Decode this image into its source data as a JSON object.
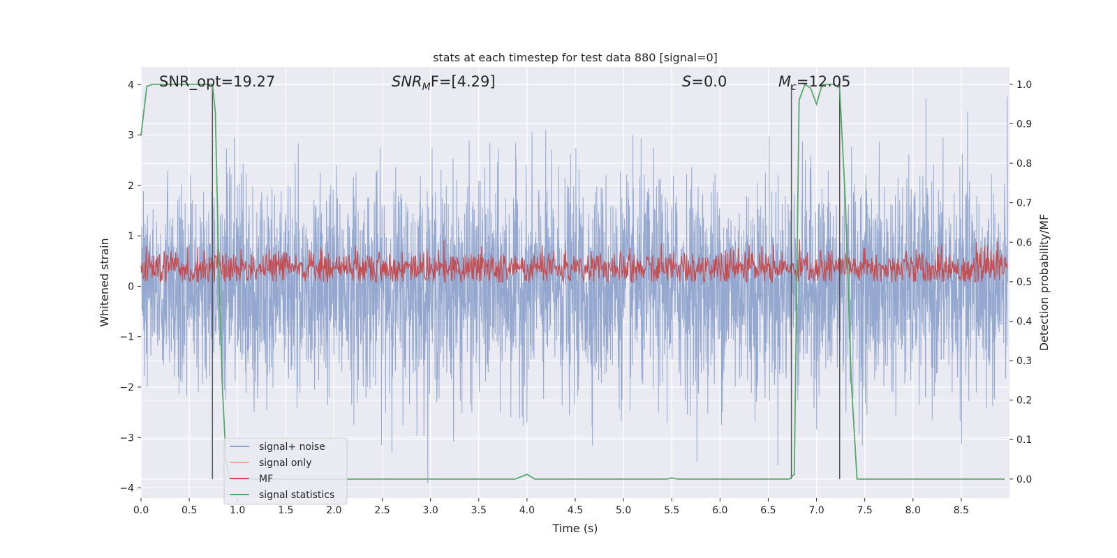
{
  "chart_data": {
    "type": "line",
    "title": "stats at each timestep for test data 880 [signal=0]",
    "xlabel": "Time (s)",
    "ylabel": "Whitened strain",
    "ylabel_right": "Detection probability/MF",
    "xlim": [
      0.0,
      9.0
    ],
    "ylim": [
      -4.2,
      4.35
    ],
    "ylim_right": [
      -0.048,
      1.044
    ],
    "x_ticks": [
      0.0,
      0.5,
      1.0,
      1.5,
      2.0,
      2.5,
      3.0,
      3.5,
      4.0,
      4.5,
      5.0,
      5.5,
      6.0,
      6.5,
      7.0,
      7.5,
      8.0,
      8.5
    ],
    "x_tick_labels": [
      "0.0",
      "0.5",
      "1.0",
      "1.5",
      "2.0",
      "2.5",
      "3.0",
      "3.5",
      "4.0",
      "4.5",
      "5.0",
      "5.5",
      "6.0",
      "6.5",
      "7.0",
      "7.5",
      "8.0",
      "8.5"
    ],
    "y_ticks": [
      4,
      3,
      2,
      1,
      0,
      -1,
      -2,
      -3,
      -4
    ],
    "y_tick_labels": [
      "4",
      "3",
      "2",
      "1",
      "0",
      "−1",
      "−2",
      "−3",
      "−4"
    ],
    "y_ticks_right": [
      1.0,
      0.9,
      0.8,
      0.7,
      0.6,
      0.5,
      0.4,
      0.3,
      0.2,
      0.1,
      0.0
    ],
    "y_tick_labels_right": [
      "1.0",
      "0.9",
      "0.8",
      "0.7",
      "0.6",
      "0.5",
      "0.4",
      "0.3",
      "0.2",
      "0.1",
      "0.0"
    ],
    "grid": true,
    "legend_position": "lower-left",
    "annotations": {
      "snr_opt": "SNR_opt=19.27",
      "snr_mf_main": "SNR",
      "snr_mf_sub": "M",
      "snr_mf_rest": "F=[4.29]",
      "s_main": "S",
      "s_rest": "=0.0",
      "mc_main": "M",
      "mc_sub": "c",
      "mc_rest": "=12.05"
    },
    "series": [
      {
        "name": "signal+ noise",
        "axis": "left",
        "color": "#8fa3cc",
        "style": "dense noise, approx. amplitude range -3.5 to 4.0, duration 0–9 s"
      },
      {
        "name": "signal only",
        "axis": "left",
        "color": "#f0a990",
        "x": [],
        "y": []
      },
      {
        "name": "MF",
        "axis": "right",
        "color": "#c44e52",
        "style": "dense noise, approx. values 0.5 to 0.6"
      },
      {
        "name": "signal statistics",
        "axis": "right",
        "color": "#55a868",
        "x": [
          0.0,
          0.06,
          0.12,
          0.2,
          0.3,
          0.4,
          0.5,
          0.6,
          0.7,
          0.74,
          0.77,
          0.8,
          0.84,
          0.88,
          0.92,
          1.0,
          2.0,
          3.0,
          3.88,
          4.0,
          4.08,
          4.5,
          5.0,
          5.45,
          5.5,
          5.56,
          6.0,
          6.5,
          6.72,
          6.77,
          6.82,
          6.88,
          6.94,
          7.0,
          7.06,
          7.12,
          7.18,
          7.24,
          7.3,
          7.36,
          7.42,
          7.6,
          8.0,
          8.5,
          8.95
        ],
        "y": [
          0.87,
          0.995,
          1.0,
          1.0,
          1.0,
          1.0,
          1.0,
          1.0,
          1.0,
          1.0,
          0.93,
          0.6,
          0.25,
          0.05,
          0.0,
          0.0,
          0.0,
          0.0,
          0.0,
          0.012,
          0.0,
          0.0,
          0.0,
          0.0,
          0.003,
          0.0,
          0.0,
          0.0,
          0.0,
          0.012,
          0.96,
          1.0,
          0.99,
          0.95,
          1.0,
          1.0,
          1.0,
          0.99,
          0.7,
          0.25,
          0.0,
          0.0,
          0.0,
          0.0,
          0.0
        ]
      }
    ],
    "vertical_lines_x": [
      0.74,
      6.74,
      7.24
    ],
    "vertical_line_color": "#555555"
  }
}
